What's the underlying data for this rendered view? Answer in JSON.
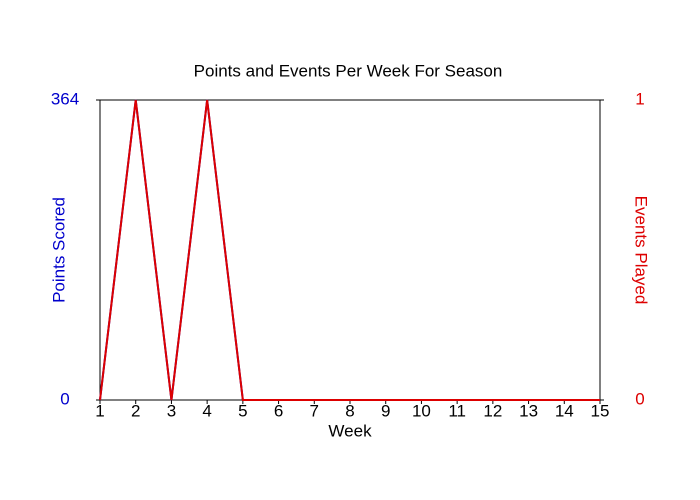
{
  "chart_data": {
    "type": "line",
    "title": "Points and Events Per Week For Season",
    "x_label": "Week",
    "y_label": "Points Scored",
    "y2_label": "Events Played",
    "x": [
      1,
      2,
      3,
      4,
      5,
      6,
      7,
      8,
      9,
      10,
      11,
      12,
      13,
      14,
      15
    ],
    "xlim": [
      1,
      15
    ],
    "xticks": [
      1,
      2,
      3,
      4,
      5,
      6,
      7,
      8,
      9,
      10,
      11,
      12,
      13,
      14,
      15
    ],
    "ylim": [
      0,
      364
    ],
    "yticks": [
      0,
      364
    ],
    "y2lim": [
      0,
      1
    ],
    "y2ticks": [
      0,
      1
    ],
    "y_color": "#0000cc",
    "y2_color": "#dd0000",
    "series": [
      {
        "name": "Points Scored",
        "color": "#0000cc",
        "values": [
          0,
          364,
          0,
          364,
          0,
          0,
          0,
          0,
          0,
          0,
          0,
          0,
          0,
          0,
          0
        ]
      },
      {
        "name": "Events Played",
        "color": "#dd0000",
        "axis": "y2",
        "values": [
          0,
          1,
          0,
          1,
          0,
          0,
          0,
          0,
          0,
          0,
          0,
          0,
          0,
          0,
          0
        ]
      }
    ]
  }
}
